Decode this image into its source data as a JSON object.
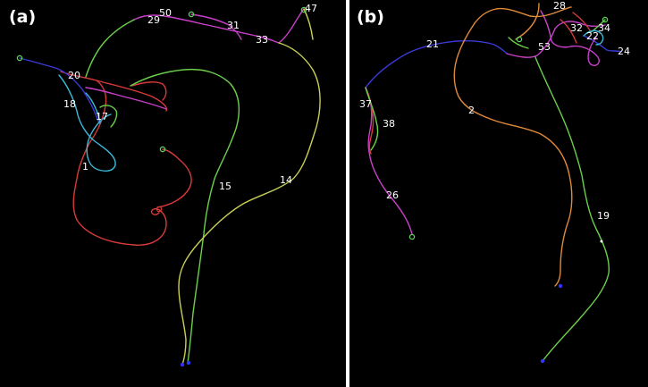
{
  "panels": [
    {
      "id": "a",
      "label": "(a)",
      "segment_labels": [
        "50",
        "29",
        "31",
        "33",
        "47",
        "20",
        "18",
        "17",
        "1",
        "15",
        "14"
      ]
    },
    {
      "id": "b",
      "label": "(b)",
      "segment_labels": [
        "28",
        "32",
        "34",
        "22",
        "24",
        "53",
        "21",
        "2",
        "37",
        "38",
        "26",
        "19"
      ]
    }
  ],
  "colors": {
    "background": "#000000",
    "separator": "#ffffff",
    "label_text": "#ffffff",
    "red": "#d83a3a",
    "orange": "#e08a3c",
    "green": "#6ccf4c",
    "yellow_green": "#c8cf55",
    "magenta": "#c840c8",
    "blue": "#3a3ad8",
    "cyan": "#3cb8d8",
    "green_marker": "#5fd35f",
    "blue_marker": "#3333ff"
  }
}
